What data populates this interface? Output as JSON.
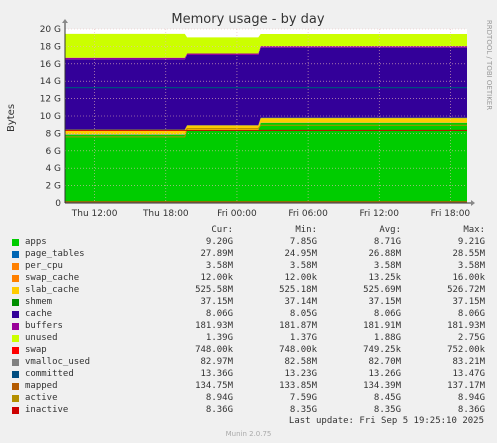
{
  "side_label": "RRDTOOL / TOBI OETIKER",
  "munin_version": "Munin 2.0.75",
  "last_update": "Last update: Fri Sep  5 19:25:10 2025",
  "colors": {
    "background": "#f0f0f0",
    "plot_bg": "#ffffff",
    "grid": "#e6b8b8",
    "apps": "#00cc00",
    "cache": "#330099",
    "unused": "#ccff00",
    "slab_cache": "#ffcc00",
    "swap": "#cc0000"
  },
  "legend_header": [
    "Cur:",
    "Min:",
    "Avg:",
    "Max:"
  ],
  "legend": [
    {
      "name": "apps",
      "color": "#00cc00",
      "cur": "9.20G",
      "min": "7.85G",
      "avg": "8.71G",
      "max": "9.21G"
    },
    {
      "name": "page_tables",
      "color": "#0066b3",
      "cur": "27.89M",
      "min": "24.95M",
      "avg": "26.88M",
      "max": "28.55M"
    },
    {
      "name": "per_cpu",
      "color": "#ff8000",
      "cur": "3.58M",
      "min": "3.58M",
      "avg": "3.58M",
      "max": "3.58M"
    },
    {
      "name": "swap_cache",
      "color": "#ff8000",
      "cur": "12.00k",
      "min": "12.00k",
      "avg": "13.25k",
      "max": "16.00k"
    },
    {
      "name": "slab_cache",
      "color": "#ffcc00",
      "cur": "525.58M",
      "min": "525.18M",
      "avg": "525.69M",
      "max": "526.72M"
    },
    {
      "name": "shmem",
      "color": "#008f00",
      "cur": "37.15M",
      "min": "37.14M",
      "avg": "37.15M",
      "max": "37.15M"
    },
    {
      "name": "cache",
      "color": "#330099",
      "cur": "8.06G",
      "min": "8.05G",
      "avg": "8.06G",
      "max": "8.06G"
    },
    {
      "name": "buffers",
      "color": "#990099",
      "cur": "181.93M",
      "min": "181.87M",
      "avg": "181.91M",
      "max": "181.93M"
    },
    {
      "name": "unused",
      "color": "#ccff00",
      "cur": "1.39G",
      "min": "1.37G",
      "avg": "1.88G",
      "max": "2.75G"
    },
    {
      "name": "swap",
      "color": "#ff0000",
      "cur": "748.00k",
      "min": "748.00k",
      "avg": "749.25k",
      "max": "752.00k"
    },
    {
      "name": "vmalloc_used",
      "color": "#808080",
      "cur": "82.97M",
      "min": "82.58M",
      "avg": "82.70M",
      "max": "83.21M"
    },
    {
      "name": "committed",
      "color": "#004d80",
      "cur": "13.36G",
      "min": "13.23G",
      "avg": "13.26G",
      "max": "13.47G"
    },
    {
      "name": "mapped",
      "color": "#b35a00",
      "cur": "134.75M",
      "min": "133.85M",
      "avg": "134.39M",
      "max": "137.17M"
    },
    {
      "name": "active",
      "color": "#b38f00",
      "cur": "8.94G",
      "min": "7.59G",
      "avg": "8.45G",
      "max": "8.94G"
    },
    {
      "name": "inactive",
      "color": "#cc0000",
      "cur": "8.36G",
      "min": "8.35G",
      "avg": "8.35G",
      "max": "8.36G"
    }
  ],
  "chart_data": {
    "type": "area",
    "title": "Memory usage - by day",
    "ylabel": "Bytes",
    "xlabel": "",
    "ylim": [
      0,
      20
    ],
    "y_unit": "G",
    "y_ticks": [
      "0",
      "2 G",
      "4 G",
      "6 G",
      "8 G",
      "10 G",
      "12 G",
      "14 G",
      "16 G",
      "18 G",
      "20 G"
    ],
    "x_ticks": [
      "Thu 12:00",
      "Thu 18:00",
      "Fri 00:00",
      "Fri 06:00",
      "Fri 12:00",
      "Fri 18:00"
    ],
    "x_tick_hours": [
      12,
      18,
      24,
      30,
      36,
      42
    ],
    "x_range_hours": [
      9.5,
      43.4
    ],
    "grid": true,
    "stack_order": [
      "apps",
      "page_tables",
      "per_cpu",
      "swap_cache",
      "slab_cache",
      "shmem",
      "cache",
      "buffers",
      "unused",
      "swap"
    ],
    "series": [
      {
        "name": "apps",
        "x": [
          9.5,
          19.6,
          19.8,
          25.8,
          26.0,
          43.4
        ],
        "values": [
          7.85,
          7.85,
          8.35,
          8.35,
          9.2,
          9.2
        ]
      },
      {
        "name": "page_tables",
        "x": [
          9.5,
          43.4
        ],
        "values": [
          0.027,
          0.027
        ]
      },
      {
        "name": "per_cpu",
        "x": [
          9.5,
          43.4
        ],
        "values": [
          0.0036,
          0.0036
        ]
      },
      {
        "name": "swap_cache",
        "x": [
          9.5,
          43.4
        ],
        "values": [
          1e-05,
          1e-05
        ]
      },
      {
        "name": "slab_cache",
        "x": [
          9.5,
          43.4
        ],
        "values": [
          0.53,
          0.53
        ]
      },
      {
        "name": "shmem",
        "x": [
          9.5,
          43.4
        ],
        "values": [
          0.037,
          0.037
        ]
      },
      {
        "name": "cache",
        "x": [
          9.5,
          43.4
        ],
        "values": [
          8.06,
          8.06
        ]
      },
      {
        "name": "buffers",
        "x": [
          9.5,
          43.4
        ],
        "values": [
          0.18,
          0.18
        ]
      },
      {
        "name": "unused",
        "x": [
          9.5,
          19.6,
          19.8,
          25.8,
          26.0,
          43.4
        ],
        "values": [
          2.75,
          2.75,
          1.85,
          1.85,
          1.39,
          1.39
        ]
      },
      {
        "name": "swap",
        "x": [
          9.5,
          43.4
        ],
        "values": [
          0.0007,
          0.0007
        ]
      }
    ],
    "lines": [
      {
        "name": "vmalloc_used",
        "x": [
          9.5,
          43.4
        ],
        "values": [
          0.083,
          0.083
        ]
      },
      {
        "name": "committed",
        "x": [
          9.5,
          43.4
        ],
        "values": [
          13.26,
          13.26
        ]
      },
      {
        "name": "mapped",
        "x": [
          9.5,
          43.4
        ],
        "values": [
          0.134,
          0.134
        ]
      },
      {
        "name": "active",
        "x": [
          9.5,
          19.6,
          19.8,
          25.8,
          26.0,
          43.4
        ],
        "values": [
          7.6,
          7.6,
          8.55,
          8.55,
          8.94,
          8.94
        ]
      },
      {
        "name": "inactive",
        "x": [
          9.5,
          43.4
        ],
        "values": [
          8.35,
          8.35
        ]
      }
    ]
  }
}
